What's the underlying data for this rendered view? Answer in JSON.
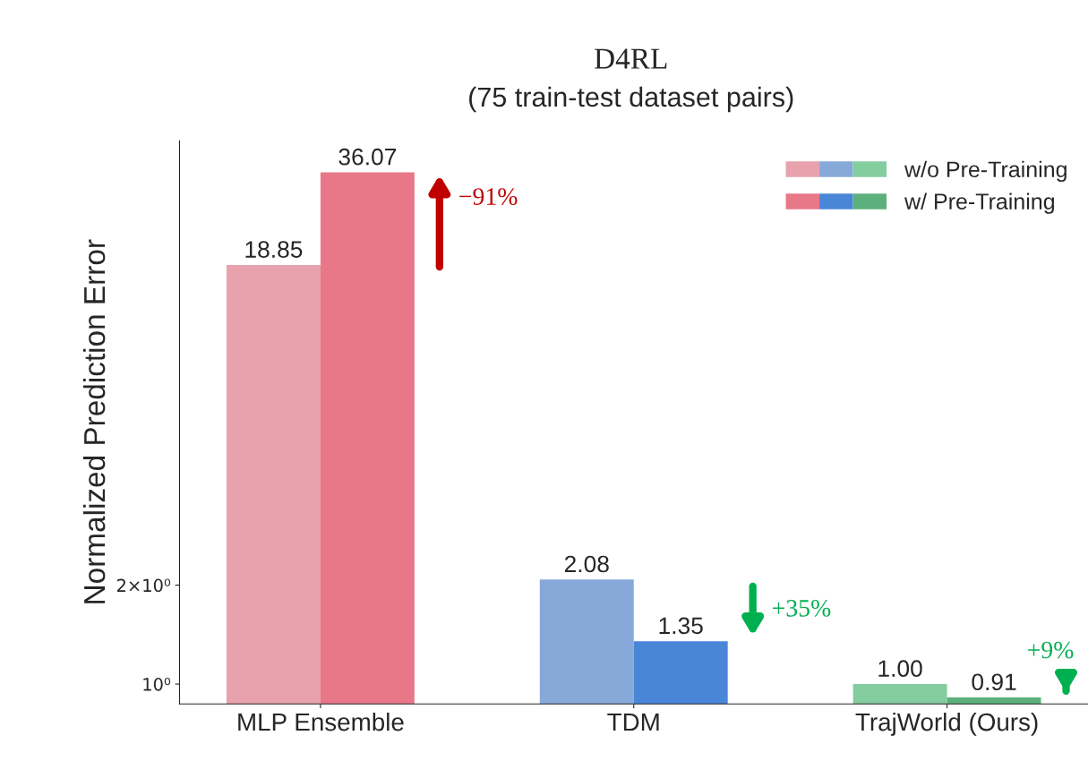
{
  "chart_data": {
    "type": "bar",
    "title": "D4RL",
    "subtitle": "(75 train-test dataset pairs)",
    "ylabel": "Normalized Prediction Error",
    "categories": [
      "MLP Ensemble",
      "TDM",
      "TrajWorld (Ours)"
    ],
    "series": [
      {
        "name": "w/o Pre-Training",
        "colors": [
          "#e8a2ad",
          "#87a9da",
          "#83cd9f"
        ],
        "values": [
          18.85,
          2.08,
          1.0
        ],
        "value_labels": [
          "18.85",
          "2.08",
          "1.00"
        ]
      },
      {
        "name": "w/ Pre-Training",
        "colors": [
          "#e87788",
          "#4a86d8",
          "#5bb07c"
        ],
        "values": [
          36.07,
          1.35,
          0.91
        ],
        "value_labels": [
          "36.07",
          "1.35",
          "0.91"
        ]
      }
    ],
    "log": "y",
    "ylim": [
      0.87,
      45
    ],
    "yticks": [
      {
        "value": 1,
        "label": "10⁰"
      },
      {
        "value": 2,
        "label": "2×10⁰"
      }
    ],
    "grid": false,
    "legend": "top right",
    "annotations": [
      "−91%",
      "+35%",
      "+9%"
    ]
  }
}
